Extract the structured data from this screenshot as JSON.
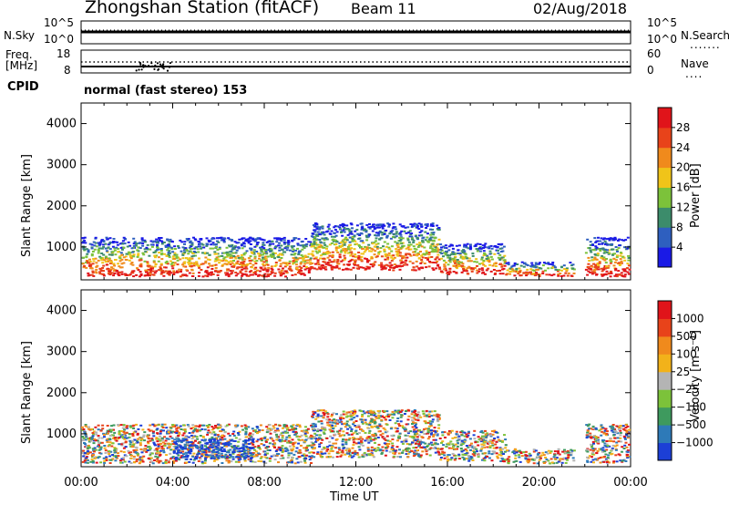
{
  "header": {
    "station": "Zhongshan Station (fitACF)",
    "beam": "Beam 11",
    "date": "02/Aug/2018"
  },
  "top_panels": {
    "nsky_label": "N.Sky",
    "nsearch_label": "N.Search",
    "nsky_tick_top": "10^5",
    "nsky_tick_bottom": "10^0",
    "nsearch_tick_top": "10^5",
    "nsearch_tick_bottom": "10^0",
    "freq_label": "Freq.",
    "freq_unit": "[MHz]",
    "freq_tick_top": "18",
    "freq_tick_bottom": "8",
    "nave_label": "Nave",
    "nave_tick_top": "60",
    "nave_tick_bottom": "0",
    "cpid_label": "CPID",
    "cpid_value": "normal (fast stereo) 153"
  },
  "chart_data": [
    {
      "type": "heatmap",
      "name": "power",
      "ylabel": "Slant Range [km]",
      "yticks": [
        "1000",
        "2000",
        "3000",
        "4000"
      ],
      "ylim": [
        200,
        4500
      ],
      "colorbar_label": "Power [dB]",
      "colorbar_ticks": [
        "4",
        "8",
        "12",
        "16",
        "20",
        "24",
        "28"
      ],
      "colorbar_range": [
        0,
        32
      ],
      "colors": [
        "#1a1ae6",
        "#2e5fbf",
        "#3c8c6b",
        "#7cc23a",
        "#f0c419",
        "#f08a1c",
        "#e8431a",
        "#e0141a"
      ],
      "scatter_regions": [
        {
          "t0": 0.0,
          "t1": 10.0,
          "r0": 300,
          "r1": 1250
        },
        {
          "t0": 10.0,
          "t1": 15.6,
          "r0": 450,
          "r1": 1600
        },
        {
          "t0": 15.6,
          "t1": 18.5,
          "r0": 350,
          "r1": 1100
        },
        {
          "t0": 18.5,
          "t1": 21.5,
          "r0": 300,
          "r1": 650
        },
        {
          "t0": 22.0,
          "t1": 23.9,
          "r0": 300,
          "r1": 1250
        }
      ]
    },
    {
      "type": "heatmap",
      "name": "velocity",
      "xlabel": "Time UT",
      "xticks": [
        "00:00",
        "04:00",
        "08:00",
        "12:00",
        "16:00",
        "20:00",
        "00:00"
      ],
      "xlim": [
        0,
        24
      ],
      "ylabel": "Slant Range [km]",
      "yticks": [
        "1000",
        "2000",
        "3000",
        "4000"
      ],
      "ylim": [
        200,
        4500
      ],
      "colorbar_label": "Velocity [m s⁻¹]",
      "colorbar_ticks": [
        "1000",
        "500",
        "100",
        "25",
        "−25",
        "−100",
        "−500",
        "−1000"
      ],
      "colors": [
        "#1c3fd6",
        "#2e7ab8",
        "#3e9a5e",
        "#7cc23a",
        "#b4b4b4",
        "#f2b21a",
        "#f08a1c",
        "#e8431a",
        "#e0141a"
      ],
      "scatter_regions": [
        {
          "t0": 0.0,
          "t1": 10.0,
          "r0": 300,
          "r1": 1250
        },
        {
          "t0": 4.0,
          "t1": 7.5,
          "r0": 400,
          "r1": 900
        },
        {
          "t0": 10.0,
          "t1": 15.6,
          "r0": 450,
          "r1": 1600
        },
        {
          "t0": 15.6,
          "t1": 18.5,
          "r0": 350,
          "r1": 1100
        },
        {
          "t0": 18.5,
          "t1": 21.5,
          "r0": 300,
          "r1": 650
        },
        {
          "t0": 22.0,
          "t1": 23.9,
          "r0": 300,
          "r1": 1250
        }
      ]
    }
  ]
}
